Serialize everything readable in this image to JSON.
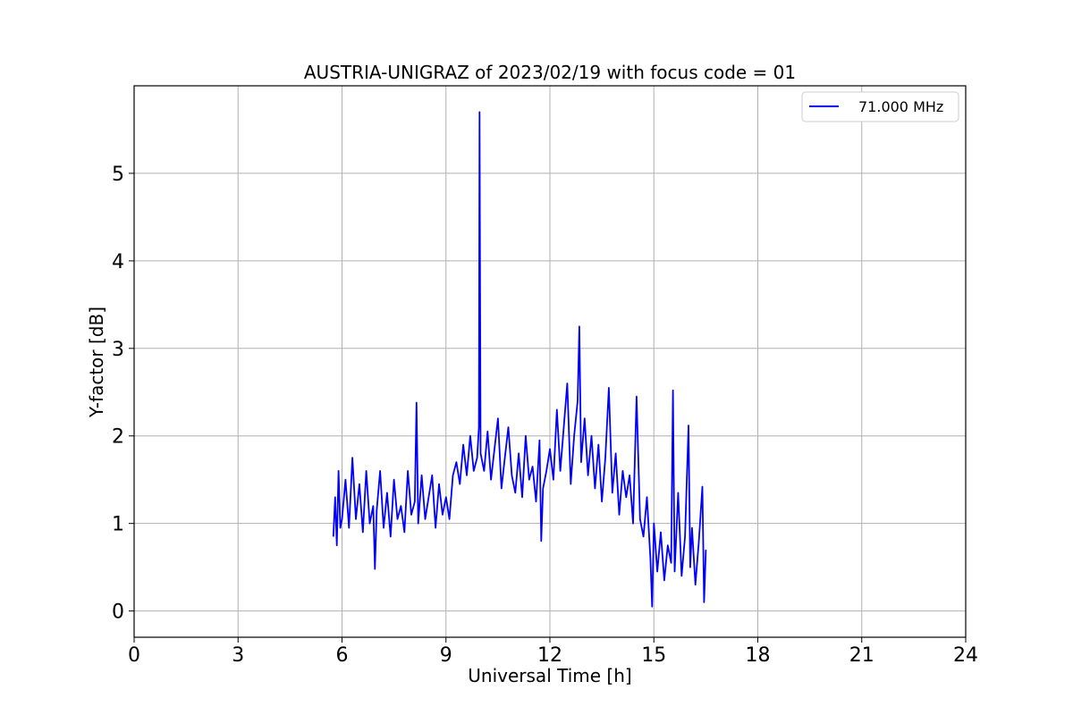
{
  "chart_data": {
    "type": "line",
    "title": "AUSTRIA-UNIGRAZ of 2023/02/19 with focus code = 01",
    "xlabel": "Universal Time [h]",
    "ylabel": "Y-factor [dB]",
    "xlim": [
      0,
      24
    ],
    "ylim": [
      -0.3,
      6.0
    ],
    "xticks": [
      0,
      3,
      6,
      9,
      12,
      15,
      18,
      21,
      24
    ],
    "yticks": [
      0,
      1,
      2,
      3,
      4,
      5
    ],
    "grid": true,
    "legend": {
      "position": "top-right",
      "entries": [
        "71.000 MHz"
      ]
    },
    "series": [
      {
        "name": "71.000 MHz",
        "color": "#0000ff",
        "x": [
          5.75,
          5.8,
          5.85,
          5.9,
          5.95,
          6.0,
          6.1,
          6.2,
          6.3,
          6.4,
          6.5,
          6.6,
          6.7,
          6.8,
          6.9,
          6.95,
          7.0,
          7.1,
          7.2,
          7.3,
          7.4,
          7.5,
          7.6,
          7.7,
          7.8,
          7.9,
          8.0,
          8.1,
          8.15,
          8.2,
          8.3,
          8.4,
          8.5,
          8.6,
          8.7,
          8.8,
          8.9,
          9.0,
          9.1,
          9.2,
          9.3,
          9.4,
          9.5,
          9.6,
          9.7,
          9.8,
          9.9,
          9.95,
          9.97,
          10.0,
          10.1,
          10.2,
          10.3,
          10.4,
          10.5,
          10.6,
          10.7,
          10.8,
          10.9,
          11.0,
          11.1,
          11.2,
          11.3,
          11.4,
          11.5,
          11.6,
          11.7,
          11.75,
          11.8,
          11.9,
          12.0,
          12.1,
          12.2,
          12.3,
          12.4,
          12.5,
          12.6,
          12.7,
          12.8,
          12.85,
          12.9,
          13.0,
          13.1,
          13.2,
          13.3,
          13.4,
          13.5,
          13.6,
          13.7,
          13.8,
          13.9,
          14.0,
          14.1,
          14.2,
          14.3,
          14.4,
          14.5,
          14.6,
          14.7,
          14.8,
          14.9,
          14.95,
          15.0,
          15.1,
          15.2,
          15.3,
          15.4,
          15.5,
          15.55,
          15.6,
          15.7,
          15.8,
          15.9,
          16.0,
          16.05,
          16.1,
          16.2,
          16.3,
          16.4,
          16.45,
          16.5
        ],
        "y": [
          0.85,
          1.3,
          0.75,
          1.6,
          0.95,
          1.05,
          1.5,
          0.95,
          1.75,
          1.05,
          1.45,
          0.9,
          1.6,
          1.0,
          1.2,
          0.48,
          1.15,
          1.6,
          0.95,
          1.35,
          0.85,
          1.5,
          1.05,
          1.2,
          0.9,
          1.6,
          1.1,
          1.25,
          2.38,
          1.0,
          1.55,
          1.05,
          1.3,
          1.55,
          0.95,
          1.45,
          1.1,
          1.3,
          1.05,
          1.55,
          1.7,
          1.45,
          1.9,
          1.55,
          2.0,
          1.6,
          1.75,
          2.1,
          5.7,
          1.8,
          1.6,
          2.05,
          1.5,
          1.85,
          2.2,
          1.4,
          1.75,
          2.1,
          1.55,
          1.35,
          1.8,
          1.3,
          2.0,
          1.5,
          1.65,
          1.25,
          1.95,
          0.8,
          1.4,
          1.6,
          1.85,
          1.5,
          2.3,
          1.6,
          2.1,
          2.6,
          1.45,
          2.0,
          2.4,
          3.25,
          1.7,
          2.2,
          1.55,
          2.0,
          1.4,
          1.9,
          1.25,
          1.75,
          2.55,
          1.35,
          1.8,
          1.1,
          1.6,
          1.3,
          1.55,
          1.0,
          2.45,
          1.05,
          0.85,
          1.3,
          0.6,
          0.05,
          1.0,
          0.45,
          0.9,
          0.35,
          0.75,
          0.55,
          2.52,
          0.45,
          1.35,
          0.4,
          0.85,
          2.12,
          0.5,
          0.95,
          0.3,
          0.8,
          1.42,
          0.1,
          0.7
        ]
      }
    ]
  }
}
